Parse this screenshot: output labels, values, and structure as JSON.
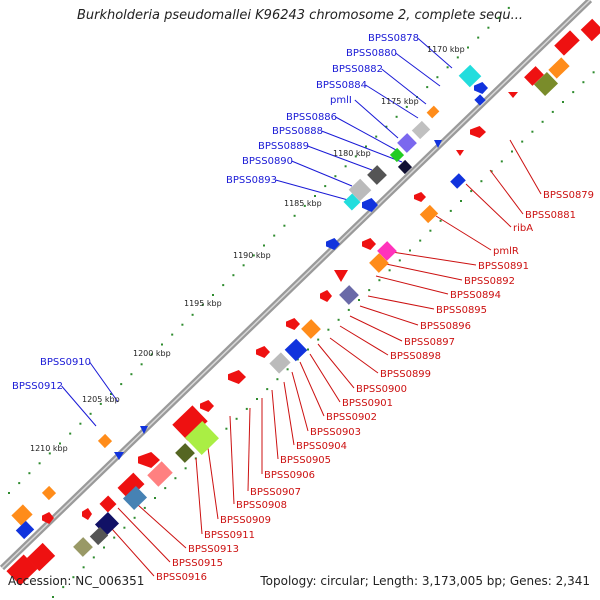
{
  "title": "Burkholderia pseudomallei K96243 chromosome 2, complete sequ...",
  "footer": {
    "accession": "Accession: NC_006351",
    "summary": "Topology: circular; Length: 3,173,005 bp; Genes: 2,341"
  },
  "kbp_ticks": [
    "1170 kbp",
    "1175 kbp",
    "1180 kbp",
    "1185 kbp",
    "1190 kbp",
    "1195 kbp",
    "1200 kbp",
    "1205 kbp",
    "1210 kbp"
  ],
  "labels_upper": [
    "BPSS0878",
    "BPSS0880",
    "BPSS0882",
    "BPSS0884",
    "pmlI",
    "BPSS0886",
    "BPSS0888",
    "BPSS0889",
    "BPSS0890",
    "BPSS0893",
    "BPSS0910",
    "BPSS0912"
  ],
  "labels_lower": [
    "BPSS0879",
    "BPSS0881",
    "ribA",
    "pmlR",
    "BPSS0891",
    "BPSS0892",
    "BPSS0894",
    "BPSS0895",
    "BPSS0896",
    "BPSS0897",
    "BPSS0898",
    "BPSS0899",
    "BPSS0900",
    "BPSS0901",
    "BPSS0902",
    "BPSS0903",
    "BPSS0904",
    "BPSS0905",
    "BPSS0906",
    "BPSS0907",
    "BPSS0908",
    "BPSS0909",
    "BPSS0911",
    "BPSS0913",
    "BPSS0915",
    "BPSS0916"
  ],
  "colors": {
    "upper_label": "#1a1ad6",
    "lower_label": "#cc1111",
    "backbone": "#8c8c8c",
    "dots": "#2e8b2e"
  }
}
